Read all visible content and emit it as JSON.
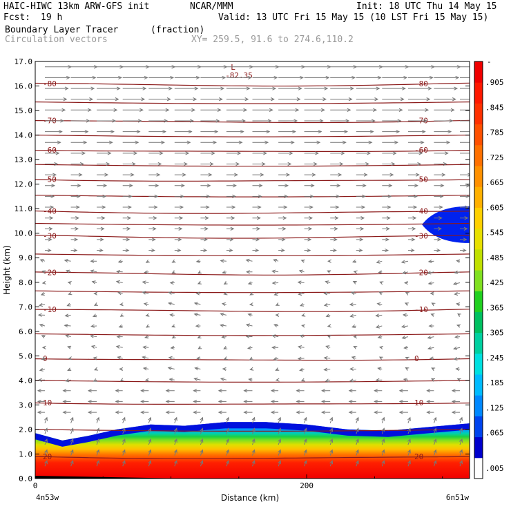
{
  "header": {
    "title": "HAIC-HIWC 13km ARW-GFS init",
    "org": "NCAR/MMM",
    "init": "Init: 18 UTC Thu 14 May 15",
    "fcst_label": "Fcst:",
    "fcst_value": "19 h",
    "valid": "Valid: 13 UTC Fri 15 May 15 (10 LST Fri 15 May 15)",
    "field_name": "Boundary Layer Tracer",
    "field_units": "(fraction)",
    "vectors_label": "Circulation vectors",
    "xy_label": "XY= 259.5, 91.6 to 274.6,110.2"
  },
  "chart_data": {
    "type": "heatmap",
    "xlabel": "Distance (km)",
    "ylabel": "Height (km)",
    "xlim": [
      0,
      320
    ],
    "ylim": [
      0,
      17
    ],
    "x_ticks": [
      {
        "value": 0,
        "label": "0"
      },
      {
        "value": 200,
        "label": "200"
      }
    ],
    "y_ticks": [
      "0.0",
      "1.0",
      "2.0",
      "3.0",
      "4.0",
      "5.0",
      "6.0",
      "7.0",
      "8.0",
      "9.0",
      "10.0",
      "11.0",
      "12.0",
      "13.0",
      "14.0",
      "15.0",
      "16.0",
      "17.0"
    ],
    "x_endpoints": {
      "left": "4n53w",
      "right": "6n51w"
    },
    "colorbar": {
      "labels": [
        ".005",
        ".065",
        ".125",
        ".185",
        ".245",
        ".305",
        ".365",
        ".425",
        ".485",
        ".545",
        ".605",
        ".665",
        ".725",
        ".785",
        ".845",
        ".905"
      ],
      "top_mark": "-",
      "colors": [
        "#ffffff",
        "#0000cc",
        "#0044ee",
        "#0088ff",
        "#00bbff",
        "#00e0e0",
        "#00d0a0",
        "#00c060",
        "#20d020",
        "#80e020",
        "#c0e000",
        "#e8e000",
        "#ffd000",
        "#ffb000",
        "#ff9000",
        "#ff7000",
        "#ff5000",
        "#ff3000",
        "#ff1800",
        "#f00000"
      ]
    },
    "temperature_contours": {
      "color": "#8b1a1a",
      "levels": [
        {
          "label": "20",
          "height": 0.9
        },
        {
          "label": "10",
          "height": 3.1
        },
        {
          "label": "0",
          "height": 4.9
        },
        {
          "label": "-10",
          "height": 6.9
        },
        {
          "label": "-20",
          "height": 8.4
        },
        {
          "label": "-30",
          "height": 9.9
        },
        {
          "label": "-40",
          "height": 10.9
        },
        {
          "label": "-50",
          "height": 12.2
        },
        {
          "label": "-60",
          "height": 13.4
        },
        {
          "label": "-70",
          "height": 14.6
        },
        {
          "label": "-80",
          "height": 16.1
        }
      ],
      "min_marker": {
        "symbol": "L",
        "value": "-82.35",
        "x": 140,
        "height": 16.6
      }
    },
    "tracer_top_height": [
      {
        "x": 0,
        "h": 1.85
      },
      {
        "x": 20,
        "h": 1.55
      },
      {
        "x": 40,
        "h": 1.75
      },
      {
        "x": 60,
        "h": 2.0
      },
      {
        "x": 85,
        "h": 2.2
      },
      {
        "x": 110,
        "h": 2.15
      },
      {
        "x": 140,
        "h": 2.3
      },
      {
        "x": 170,
        "h": 2.3
      },
      {
        "x": 200,
        "h": 2.2
      },
      {
        "x": 230,
        "h": 2.0
      },
      {
        "x": 260,
        "h": 1.95
      },
      {
        "x": 290,
        "h": 2.1
      },
      {
        "x": 320,
        "h": 2.25
      }
    ],
    "upper_tracer_patch": {
      "x_start": 285,
      "x_end": 320,
      "bottom": 9.6,
      "top": 11.1
    }
  }
}
